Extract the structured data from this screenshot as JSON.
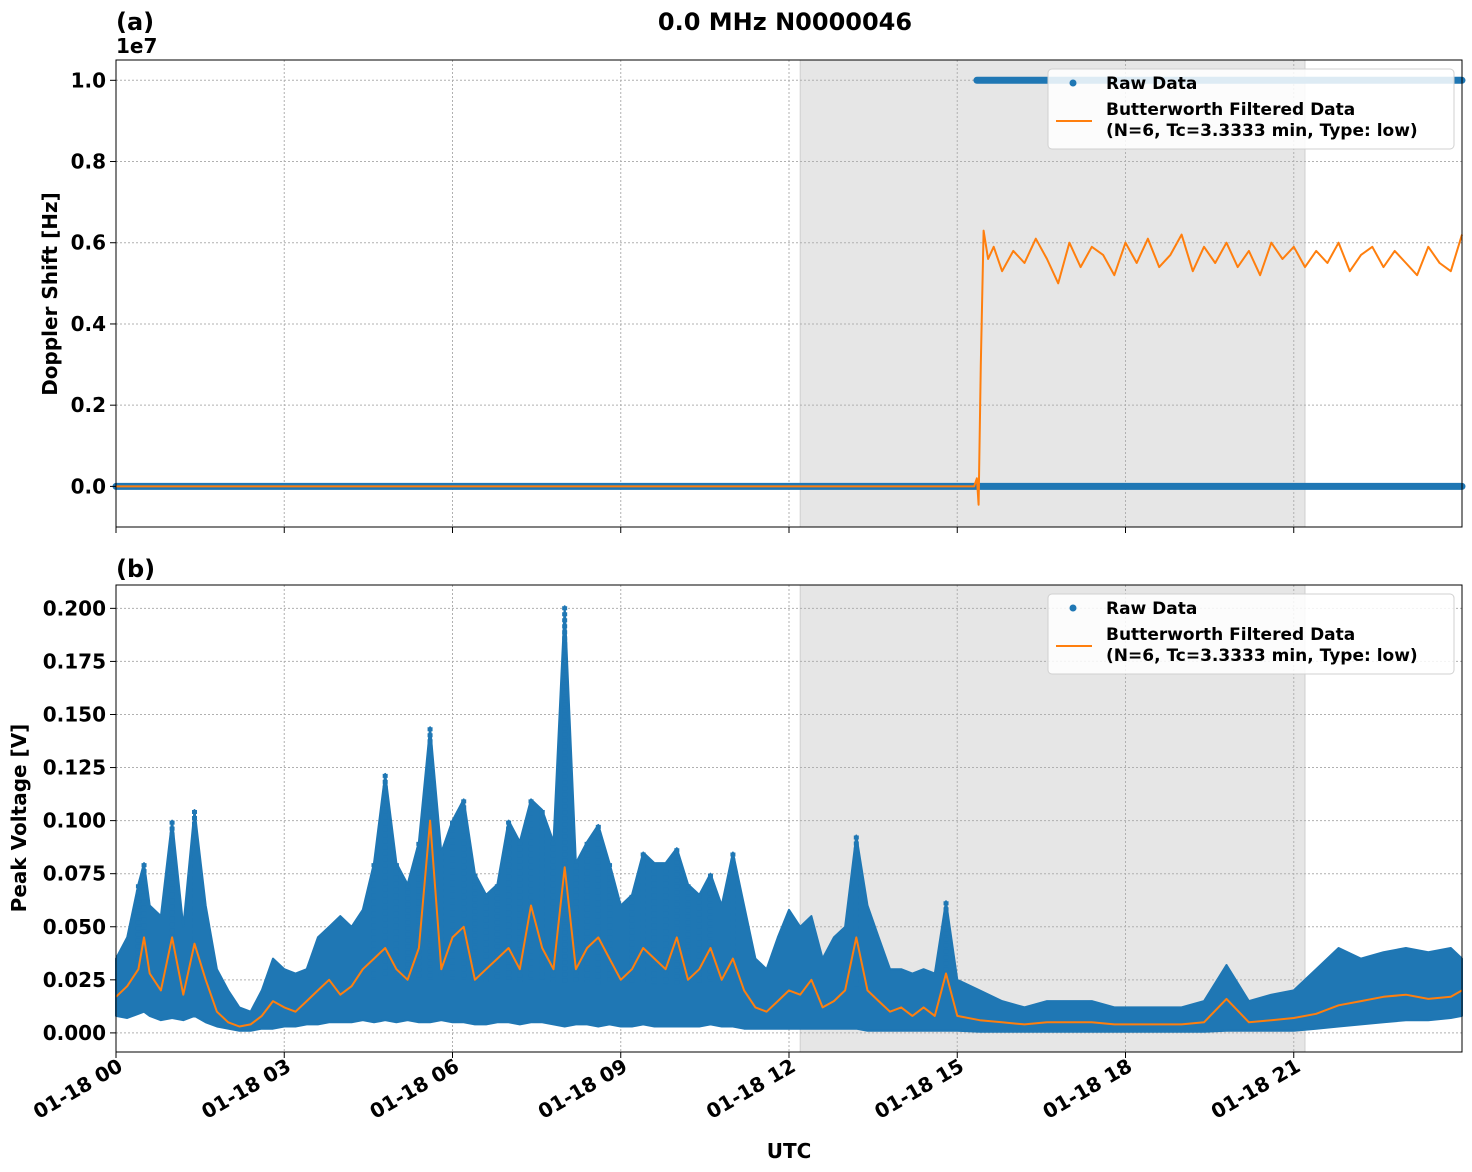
{
  "figure": {
    "title": "0.0 MHz N0000046",
    "xlabel": "UTC",
    "x_ticks": [
      "01-18 00",
      "01-18 03",
      "01-18 06",
      "01-18 09",
      "01-18 12",
      "01-18 15",
      "01-18 18",
      "01-18 21"
    ]
  },
  "colors": {
    "raw": "#1f77b4",
    "filtered": "#ff7f0e",
    "shade": "#e6e6e6",
    "grid": "#b0b0b0"
  },
  "chart_data": [
    {
      "type": "line",
      "panel_label": "(a)",
      "ylabel": "Doppler Shift [Hz]",
      "offset_text": "1e7",
      "x_unit": "hours UTC on 01-18",
      "xlim": [
        0,
        24
      ],
      "ylim": [
        -1000000,
        10500000
      ],
      "y_ticks": [
        "0.0",
        "0.2",
        "0.4",
        "0.6",
        "0.8",
        "1.0"
      ],
      "y_tick_values": [
        0,
        2000000,
        4000000,
        6000000,
        8000000,
        10000000
      ],
      "grid": true,
      "shaded_region": [
        12.2,
        21.2
      ],
      "legend": {
        "placement": "top-right",
        "entries": [
          "Raw Data",
          "Butterworth Filtered Data\n(N=6, Tc=3.3333 min, Type: low)"
        ]
      },
      "series": [
        {
          "name": "Raw Data",
          "style": "points",
          "segments": [
            {
              "x": [
                0,
                24
              ],
              "y": [
                0,
                0
              ]
            },
            {
              "x": [
                15.35,
                24
              ],
              "y": [
                10000000,
                10000000
              ]
            }
          ]
        },
        {
          "name": "Butterworth Filtered Data\n(N=6, Tc=3.3333 min, Type: low)",
          "style": "line",
          "x": [
            0,
            15.3,
            15.35,
            15.38,
            15.42,
            15.47,
            15.55,
            15.65,
            15.8,
            16.0,
            16.2,
            16.4,
            16.6,
            16.8,
            17.0,
            17.2,
            17.4,
            17.6,
            17.8,
            18.0,
            18.2,
            18.4,
            18.6,
            18.8,
            19.0,
            19.2,
            19.4,
            19.6,
            19.8,
            20.0,
            20.2,
            20.4,
            20.6,
            20.8,
            21.0,
            21.2,
            21.4,
            21.6,
            21.8,
            22.0,
            22.2,
            22.4,
            22.6,
            22.8,
            23.0,
            23.2,
            23.4,
            23.6,
            23.8,
            24.0
          ],
          "y": [
            0,
            0,
            200000,
            -450000,
            3000000,
            6300000,
            5600000,
            5900000,
            5300000,
            5800000,
            5500000,
            6100000,
            5600000,
            5000000,
            6000000,
            5400000,
            5900000,
            5700000,
            5200000,
            6000000,
            5500000,
            6100000,
            5400000,
            5700000,
            6200000,
            5300000,
            5900000,
            5500000,
            6000000,
            5400000,
            5800000,
            5200000,
            6000000,
            5600000,
            5900000,
            5400000,
            5800000,
            5500000,
            6000000,
            5300000,
            5700000,
            5900000,
            5400000,
            5800000,
            5500000,
            5200000,
            5900000,
            5500000,
            5300000,
            6200000
          ]
        }
      ]
    },
    {
      "type": "scatter",
      "panel_label": "(b)",
      "ylabel": "Peak Voltage [V]",
      "x_unit": "hours UTC on 01-18",
      "xlim": [
        0,
        24
      ],
      "ylim": [
        -0.009,
        0.211
      ],
      "y_ticks": [
        "0.000",
        "0.025",
        "0.050",
        "0.075",
        "0.100",
        "0.125",
        "0.150",
        "0.175",
        "0.200"
      ],
      "y_tick_values": [
        0,
        0.025,
        0.05,
        0.075,
        0.1,
        0.125,
        0.15,
        0.175,
        0.2
      ],
      "grid": true,
      "shaded_region": [
        12.2,
        21.2
      ],
      "legend": {
        "placement": "top-right",
        "entries": [
          "Raw Data",
          "Butterworth Filtered Data\n(N=6, Tc=3.3333 min, Type: low)"
        ]
      },
      "series": [
        {
          "name": "Raw Data",
          "style": "envelope",
          "x": [
            0,
            0.2,
            0.4,
            0.5,
            0.6,
            0.8,
            1.0,
            1.2,
            1.4,
            1.6,
            1.8,
            2.0,
            2.2,
            2.4,
            2.6,
            2.8,
            3.0,
            3.2,
            3.4,
            3.6,
            3.8,
            4.0,
            4.2,
            4.4,
            4.6,
            4.8,
            5.0,
            5.2,
            5.4,
            5.6,
            5.8,
            6.0,
            6.2,
            6.4,
            6.6,
            6.8,
            7.0,
            7.2,
            7.4,
            7.6,
            7.8,
            8.0,
            8.2,
            8.4,
            8.6,
            8.8,
            9.0,
            9.2,
            9.4,
            9.6,
            9.8,
            10.0,
            10.2,
            10.4,
            10.6,
            10.8,
            11.0,
            11.2,
            11.4,
            11.6,
            11.8,
            12.0,
            12.2,
            12.4,
            12.6,
            12.8,
            13.0,
            13.2,
            13.4,
            13.6,
            13.8,
            14.0,
            14.2,
            14.4,
            14.6,
            14.8,
            15.0,
            15.4,
            15.8,
            16.2,
            16.6,
            17.0,
            17.4,
            17.8,
            18.2,
            18.6,
            19.0,
            19.4,
            19.8,
            20.2,
            20.6,
            21.0,
            21.4,
            21.8,
            22.2,
            22.6,
            23.0,
            23.4,
            23.8,
            24.0
          ],
          "low": [
            0.008,
            0.007,
            0.009,
            0.01,
            0.008,
            0.006,
            0.007,
            0.006,
            0.008,
            0.005,
            0.003,
            0.002,
            0.001,
            0.001,
            0.002,
            0.002,
            0.003,
            0.003,
            0.004,
            0.004,
            0.005,
            0.005,
            0.005,
            0.006,
            0.005,
            0.006,
            0.005,
            0.006,
            0.005,
            0.005,
            0.006,
            0.005,
            0.005,
            0.004,
            0.004,
            0.005,
            0.005,
            0.004,
            0.005,
            0.005,
            0.004,
            0.003,
            0.004,
            0.004,
            0.003,
            0.004,
            0.003,
            0.003,
            0.004,
            0.003,
            0.003,
            0.003,
            0.003,
            0.003,
            0.004,
            0.003,
            0.003,
            0.002,
            0.002,
            0.002,
            0.002,
            0.002,
            0.002,
            0.002,
            0.002,
            0.002,
            0.002,
            0.002,
            0.001,
            0.001,
            0.001,
            0.001,
            0.001,
            0.001,
            0.001,
            0.001,
            0.001,
            0.0005,
            0.0005,
            0.0005,
            0.0005,
            0.0005,
            0.0005,
            0.0005,
            0.0005,
            0.0005,
            0.0005,
            0.0005,
            0.001,
            0.001,
            0.001,
            0.001,
            0.002,
            0.003,
            0.004,
            0.005,
            0.006,
            0.006,
            0.007,
            0.008
          ],
          "high": [
            0.035,
            0.045,
            0.07,
            0.08,
            0.06,
            0.055,
            0.1,
            0.05,
            0.105,
            0.06,
            0.03,
            0.02,
            0.012,
            0.01,
            0.02,
            0.035,
            0.03,
            0.028,
            0.03,
            0.045,
            0.05,
            0.055,
            0.05,
            0.058,
            0.08,
            0.122,
            0.08,
            0.07,
            0.09,
            0.144,
            0.085,
            0.1,
            0.11,
            0.075,
            0.065,
            0.07,
            0.1,
            0.09,
            0.11,
            0.105,
            0.09,
            0.201,
            0.08,
            0.09,
            0.098,
            0.08,
            0.06,
            0.065,
            0.085,
            0.08,
            0.08,
            0.087,
            0.07,
            0.065,
            0.075,
            0.06,
            0.085,
            0.06,
            0.035,
            0.03,
            0.045,
            0.058,
            0.05,
            0.055,
            0.035,
            0.045,
            0.05,
            0.093,
            0.06,
            0.045,
            0.03,
            0.03,
            0.028,
            0.03,
            0.028,
            0.062,
            0.025,
            0.02,
            0.015,
            0.012,
            0.015,
            0.015,
            0.015,
            0.012,
            0.012,
            0.012,
            0.012,
            0.015,
            0.032,
            0.015,
            0.018,
            0.02,
            0.03,
            0.04,
            0.035,
            0.038,
            0.04,
            0.038,
            0.04,
            0.035
          ]
        },
        {
          "name": "Butterworth Filtered Data\n(N=6, Tc=3.3333 min, Type: low)",
          "style": "line",
          "x": [
            0,
            0.2,
            0.4,
            0.5,
            0.6,
            0.8,
            1.0,
            1.2,
            1.4,
            1.6,
            1.8,
            2.0,
            2.2,
            2.4,
            2.6,
            2.8,
            3.0,
            3.2,
            3.4,
            3.6,
            3.8,
            4.0,
            4.2,
            4.4,
            4.6,
            4.8,
            5.0,
            5.2,
            5.4,
            5.6,
            5.8,
            6.0,
            6.2,
            6.4,
            6.6,
            6.8,
            7.0,
            7.2,
            7.4,
            7.6,
            7.8,
            8.0,
            8.2,
            8.4,
            8.6,
            8.8,
            9.0,
            9.2,
            9.4,
            9.6,
            9.8,
            10.0,
            10.2,
            10.4,
            10.6,
            10.8,
            11.0,
            11.2,
            11.4,
            11.6,
            11.8,
            12.0,
            12.2,
            12.4,
            12.6,
            12.8,
            13.0,
            13.2,
            13.4,
            13.6,
            13.8,
            14.0,
            14.2,
            14.4,
            14.6,
            14.8,
            15.0,
            15.4,
            15.8,
            16.2,
            16.6,
            17.0,
            17.4,
            17.8,
            18.2,
            18.6,
            19.0,
            19.4,
            19.8,
            20.2,
            20.6,
            21.0,
            21.4,
            21.8,
            22.2,
            22.6,
            23.0,
            23.4,
            23.8,
            24.0
          ],
          "y": [
            0.017,
            0.022,
            0.03,
            0.045,
            0.028,
            0.02,
            0.045,
            0.018,
            0.042,
            0.025,
            0.01,
            0.005,
            0.003,
            0.004,
            0.008,
            0.015,
            0.012,
            0.01,
            0.015,
            0.02,
            0.025,
            0.018,
            0.022,
            0.03,
            0.035,
            0.04,
            0.03,
            0.025,
            0.04,
            0.1,
            0.03,
            0.045,
            0.05,
            0.025,
            0.03,
            0.035,
            0.04,
            0.03,
            0.06,
            0.04,
            0.03,
            0.078,
            0.03,
            0.04,
            0.045,
            0.035,
            0.025,
            0.03,
            0.04,
            0.035,
            0.03,
            0.045,
            0.025,
            0.03,
            0.04,
            0.025,
            0.035,
            0.02,
            0.012,
            0.01,
            0.015,
            0.02,
            0.018,
            0.025,
            0.012,
            0.015,
            0.02,
            0.045,
            0.02,
            0.015,
            0.01,
            0.012,
            0.008,
            0.012,
            0.008,
            0.028,
            0.008,
            0.006,
            0.005,
            0.004,
            0.005,
            0.005,
            0.005,
            0.004,
            0.004,
            0.004,
            0.004,
            0.005,
            0.016,
            0.005,
            0.006,
            0.007,
            0.009,
            0.013,
            0.015,
            0.017,
            0.018,
            0.016,
            0.017,
            0.02
          ]
        }
      ]
    }
  ]
}
